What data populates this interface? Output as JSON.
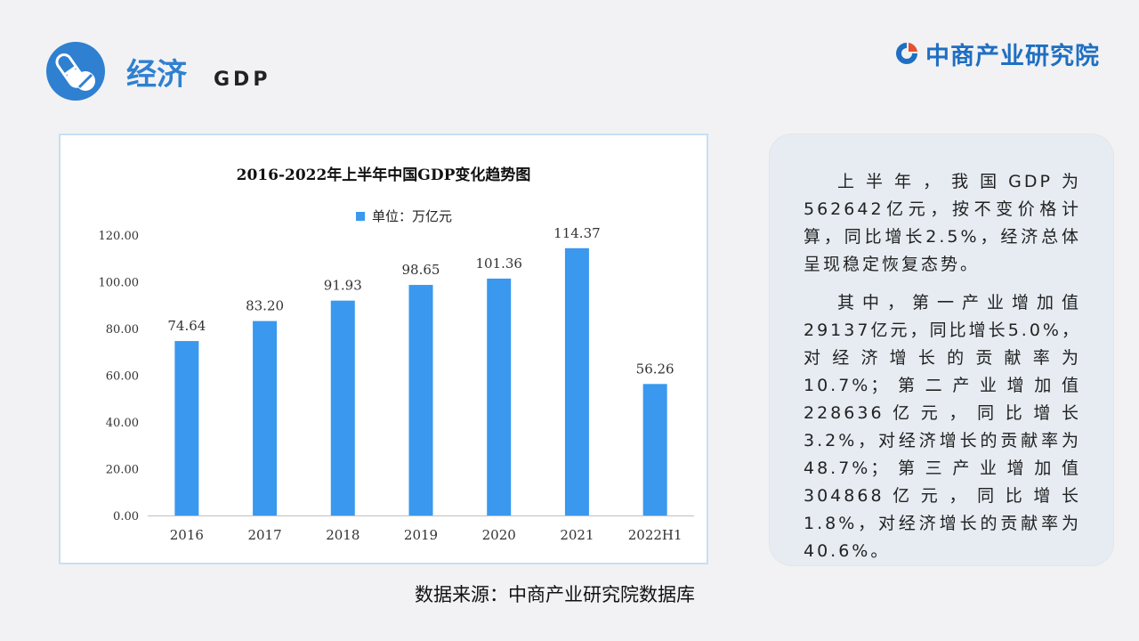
{
  "header": {
    "title_main": "经济",
    "title_sub": "GDP",
    "icon": "pill-icon",
    "brand_name": "中商产业研究院",
    "brand_icon": "company-logo-icon"
  },
  "chart_data": {
    "type": "bar",
    "title": "2016-2022年上半年中国GDP变化趋势图",
    "legend": [
      "单位：万亿元"
    ],
    "categories": [
      "2016",
      "2017",
      "2018",
      "2019",
      "2020",
      "2021",
      "2022H1"
    ],
    "values": [
      74.64,
      83.2,
      91.93,
      98.65,
      101.36,
      114.37,
      56.26
    ],
    "value_labels": [
      "74.64",
      "83.20",
      "91.93",
      "98.65",
      "101.36",
      "114.37",
      "56.26"
    ],
    "y_ticks": [
      "0.00",
      "20.00",
      "40.00",
      "60.00",
      "80.00",
      "100.00",
      "120.00"
    ],
    "ylim": [
      0,
      120
    ],
    "grid": false,
    "legend_position": "top",
    "bar_color": "#3a98ee"
  },
  "source": "数据来源：中商产业研究院数据库",
  "text_panel": {
    "paragraphs": [
      "上半年，我国GDP为562642亿元，按不变价格计算，同比增长2.5%，经济总体呈现稳定恢复态势。",
      "其中，第一产业增加值29137亿元，同比增长5.0%，对经济增长的贡献率为10.7%；第二产业增加值228636亿元，同比增长3.2%，对经济增长的贡献率为48.7%；第三产业增加值304868亿元，同比增长1.8%，对经济增长的贡献率为40.6%。"
    ]
  }
}
